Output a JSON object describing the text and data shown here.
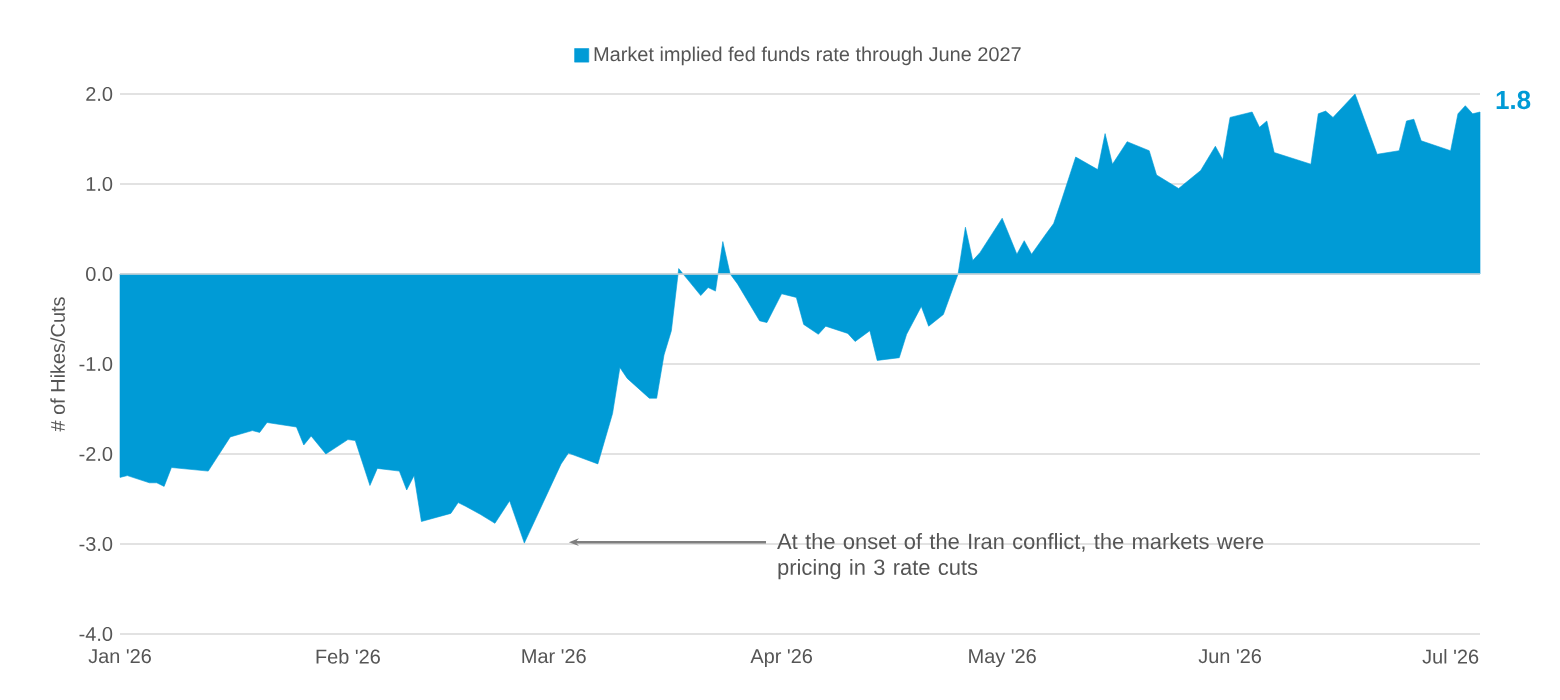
{
  "chart_data": {
    "type": "area",
    "series": [
      {
        "name": "Market implied fed funds rate through June 2027",
        "color": "#009bd6",
        "x": [
          "2026-01-01",
          "2026-01-02",
          "2026-01-05",
          "2026-01-06",
          "2026-01-07",
          "2026-01-08",
          "2026-01-13",
          "2026-01-16",
          "2026-01-19",
          "2026-01-20",
          "2026-01-21",
          "2026-01-25",
          "2026-01-26",
          "2026-01-27",
          "2026-01-29",
          "2026-02-01",
          "2026-02-02",
          "2026-02-04",
          "2026-02-05",
          "2026-02-08",
          "2026-02-09",
          "2026-02-10",
          "2026-02-11",
          "2026-02-15",
          "2026-02-16",
          "2026-02-17",
          "2026-02-19",
          "2026-02-21",
          "2026-02-23",
          "2026-02-25",
          "2026-03-02",
          "2026-03-03",
          "2026-03-07",
          "2026-03-09",
          "2026-03-10",
          "2026-03-11",
          "2026-03-14",
          "2026-03-15",
          "2026-03-16",
          "2026-03-17",
          "2026-03-18",
          "2026-03-19",
          "2026-03-21",
          "2026-03-22",
          "2026-03-23",
          "2026-03-24",
          "2026-03-25",
          "2026-03-26",
          "2026-03-29",
          "2026-03-30",
          "2026-04-01",
          "2026-04-03",
          "2026-04-04",
          "2026-04-06",
          "2026-04-07",
          "2026-04-10",
          "2026-04-11",
          "2026-04-13",
          "2026-04-14",
          "2026-04-17",
          "2026-04-18",
          "2026-04-20",
          "2026-04-21",
          "2026-04-23",
          "2026-04-25",
          "2026-04-26",
          "2026-04-27",
          "2026-04-28",
          "2026-05-01",
          "2026-05-03",
          "2026-05-04",
          "2026-05-05",
          "2026-05-07",
          "2026-05-08",
          "2026-05-09",
          "2026-05-11",
          "2026-05-14",
          "2026-05-15",
          "2026-05-16",
          "2026-05-18",
          "2026-05-21",
          "2026-05-22",
          "2026-05-25",
          "2026-05-28",
          "2026-05-30",
          "2026-05-31",
          "2026-06-01",
          "2026-06-04",
          "2026-06-05",
          "2026-06-06",
          "2026-06-07",
          "2026-06-12",
          "2026-06-13",
          "2026-06-14",
          "2026-06-15",
          "2026-06-18",
          "2026-06-21",
          "2026-06-24",
          "2026-06-25",
          "2026-06-26",
          "2026-06-27",
          "2026-07-01",
          "2026-07-02",
          "2026-07-03",
          "2026-07-04",
          "2026-07-05"
        ],
        "values": [
          -2.26,
          -2.24,
          -2.32,
          -2.32,
          -2.36,
          -2.15,
          -2.19,
          -1.81,
          -1.74,
          -1.76,
          -1.65,
          -1.7,
          -1.9,
          -1.8,
          -2.0,
          -1.84,
          -1.85,
          -2.35,
          -2.16,
          -2.19,
          -2.4,
          -2.24,
          -2.75,
          -2.66,
          -2.54,
          -2.58,
          -2.67,
          -2.77,
          -2.52,
          -2.99,
          -2.11,
          -1.99,
          -2.11,
          -1.55,
          -1.04,
          -1.16,
          -1.38,
          -1.38,
          -0.9,
          -0.63,
          0.06,
          -0.04,
          -0.24,
          -0.15,
          -0.19,
          0.36,
          0.0,
          -0.11,
          -0.52,
          -0.54,
          -0.22,
          -0.26,
          -0.56,
          -0.67,
          -0.58,
          -0.66,
          -0.75,
          -0.63,
          -0.96,
          -0.93,
          -0.67,
          -0.36,
          -0.58,
          -0.45,
          0.0,
          0.52,
          0.15,
          0.24,
          0.62,
          0.22,
          0.37,
          0.22,
          0.45,
          0.56,
          0.8,
          1.3,
          1.16,
          1.56,
          1.22,
          1.47,
          1.37,
          1.1,
          0.95,
          1.15,
          1.42,
          1.27,
          1.74,
          1.8,
          1.63,
          1.7,
          1.35,
          1.22,
          1.78,
          1.81,
          1.74,
          2.0,
          1.33,
          1.37,
          1.7,
          1.72,
          1.48,
          1.37,
          1.78,
          1.87,
          1.78,
          1.8
        ]
      }
    ],
    "ylabel": "# of Hikes/Cuts",
    "xlim": [
      "2026-01-01",
      "2026-07-05"
    ],
    "xticks": [
      {
        "value": "2026-01-01",
        "label": "Jan '26"
      },
      {
        "value": "2026-02-01",
        "label": "Feb '26"
      },
      {
        "value": "2026-03-01",
        "label": "Mar '26"
      },
      {
        "value": "2026-04-01",
        "label": "Apr '26"
      },
      {
        "value": "2026-05-01",
        "label": "May '26"
      },
      {
        "value": "2026-06-01",
        "label": "Jun '26"
      },
      {
        "value": "2026-07-01",
        "label": "Jul '26"
      }
    ],
    "ylim": [
      -4,
      2
    ],
    "yticks": [
      {
        "value": -4,
        "label": "-4.0"
      },
      {
        "value": -3,
        "label": "-3.0"
      },
      {
        "value": -2,
        "label": "-2.0"
      },
      {
        "value": -1,
        "label": "-1.0"
      },
      {
        "value": 0,
        "label": "0.0"
      },
      {
        "value": 1,
        "label": "1.0"
      },
      {
        "value": 2,
        "label": "2.0"
      }
    ],
    "grid": "y",
    "legend": "top",
    "annotations": [
      "At the onset of the Iran conflict, the markets were pricing in 3 rate cuts",
      {
        "text": "1.8",
        "x": "2026-07-05",
        "y": 1.8
      }
    ]
  }
}
